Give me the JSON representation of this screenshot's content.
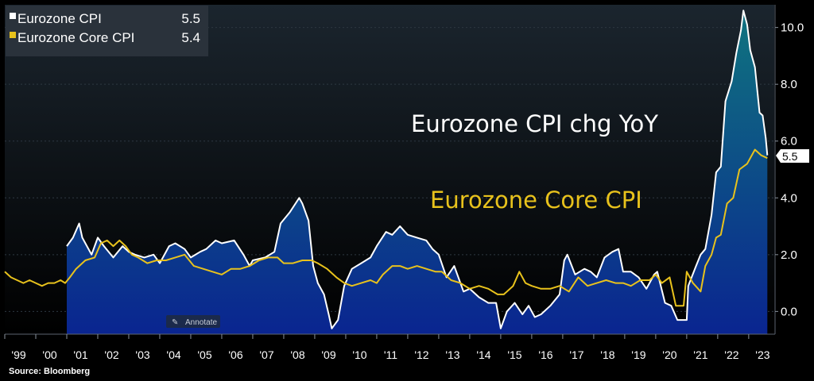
{
  "source": "Source: Bloomberg",
  "annotate_label": "Annotate",
  "colors": {
    "cpi": "#ffffff",
    "core": "#e8c21c",
    "area_top": "#0f6f80",
    "area_bottom": "#0a2590",
    "background_top": "#1b252e",
    "background_bottom": "#000000"
  },
  "legend": [
    {
      "name": "Eurozone CPI",
      "value": "5.5"
    },
    {
      "name": "Eurozone Core CPI",
      "value": "5.4"
    }
  ],
  "annotations": {
    "cpi_title": "Eurozone CPI chg YoY",
    "core_title": "Eurozone Core CPI",
    "last_value": "5.5"
  },
  "chart_data": {
    "type": "line",
    "title": "Eurozone CPI chg YoY",
    "ylim": [
      -0.8,
      10.8
    ],
    "yticks": [
      "0.0",
      "2.0",
      "4.0",
      "6.0",
      "8.0",
      "10.0"
    ],
    "y_axis_side": "right",
    "x_tick_labels": [
      "'99",
      "'00",
      "'01",
      "'02",
      "'03",
      "'04",
      "'05",
      "'06",
      "'07",
      "'08",
      "'09",
      "'10",
      "'11",
      "'12",
      "'13",
      "'14",
      "'15",
      "'16",
      "'17",
      "'18",
      "'19",
      "'20",
      "'21",
      "'22",
      "'23"
    ],
    "legend_placement": "top-left",
    "series": [
      {
        "name": "Eurozone CPI",
        "points": [
          [
            2001.0,
            2.3
          ],
          [
            2001.2,
            2.6
          ],
          [
            2001.4,
            3.1
          ],
          [
            2001.5,
            2.6
          ],
          [
            2001.8,
            2.0
          ],
          [
            2002.0,
            2.6
          ],
          [
            2002.2,
            2.3
          ],
          [
            2002.5,
            1.9
          ],
          [
            2002.8,
            2.3
          ],
          [
            2003.0,
            2.1
          ],
          [
            2003.2,
            2.0
          ],
          [
            2003.5,
            1.9
          ],
          [
            2003.8,
            2.0
          ],
          [
            2004.0,
            1.7
          ],
          [
            2004.3,
            2.3
          ],
          [
            2004.5,
            2.4
          ],
          [
            2004.8,
            2.2
          ],
          [
            2005.0,
            1.9
          ],
          [
            2005.3,
            2.1
          ],
          [
            2005.5,
            2.2
          ],
          [
            2005.8,
            2.5
          ],
          [
            2006.0,
            2.4
          ],
          [
            2006.4,
            2.5
          ],
          [
            2006.7,
            2.0
          ],
          [
            2006.9,
            1.6
          ],
          [
            2007.0,
            1.8
          ],
          [
            2007.4,
            1.9
          ],
          [
            2007.7,
            2.1
          ],
          [
            2007.9,
            3.1
          ],
          [
            2008.2,
            3.5
          ],
          [
            2008.5,
            4.0
          ],
          [
            2008.6,
            3.8
          ],
          [
            2008.8,
            3.2
          ],
          [
            2008.95,
            1.6
          ],
          [
            2009.1,
            1.0
          ],
          [
            2009.3,
            0.6
          ],
          [
            2009.45,
            -0.1
          ],
          [
            2009.55,
            -0.6
          ],
          [
            2009.75,
            -0.3
          ],
          [
            2009.95,
            0.9
          ],
          [
            2010.2,
            1.5
          ],
          [
            2010.5,
            1.7
          ],
          [
            2010.8,
            1.9
          ],
          [
            2011.0,
            2.3
          ],
          [
            2011.3,
            2.8
          ],
          [
            2011.5,
            2.7
          ],
          [
            2011.75,
            3.0
          ],
          [
            2012.0,
            2.7
          ],
          [
            2012.3,
            2.6
          ],
          [
            2012.6,
            2.5
          ],
          [
            2012.8,
            2.2
          ],
          [
            2013.0,
            2.0
          ],
          [
            2013.25,
            1.2
          ],
          [
            2013.5,
            1.6
          ],
          [
            2013.8,
            0.7
          ],
          [
            2014.0,
            0.8
          ],
          [
            2014.3,
            0.5
          ],
          [
            2014.6,
            0.3
          ],
          [
            2014.85,
            0.3
          ],
          [
            2015.0,
            -0.6
          ],
          [
            2015.2,
            0.0
          ],
          [
            2015.45,
            0.3
          ],
          [
            2015.7,
            -0.1
          ],
          [
            2015.9,
            0.2
          ],
          [
            2016.1,
            -0.2
          ],
          [
            2016.3,
            -0.1
          ],
          [
            2016.6,
            0.2
          ],
          [
            2016.9,
            0.6
          ],
          [
            2017.05,
            1.8
          ],
          [
            2017.15,
            2.0
          ],
          [
            2017.4,
            1.3
          ],
          [
            2017.7,
            1.5
          ],
          [
            2017.9,
            1.4
          ],
          [
            2018.1,
            1.2
          ],
          [
            2018.35,
            1.9
          ],
          [
            2018.6,
            2.1
          ],
          [
            2018.8,
            2.2
          ],
          [
            2018.95,
            1.4
          ],
          [
            2019.2,
            1.4
          ],
          [
            2019.45,
            1.2
          ],
          [
            2019.7,
            0.8
          ],
          [
            2019.95,
            1.3
          ],
          [
            2020.05,
            1.4
          ],
          [
            2020.3,
            0.3
          ],
          [
            2020.5,
            0.2
          ],
          [
            2020.7,
            -0.3
          ],
          [
            2020.9,
            -0.3
          ],
          [
            2021.0,
            -0.3
          ],
          [
            2021.05,
            0.9
          ],
          [
            2021.3,
            1.6
          ],
          [
            2021.45,
            2.0
          ],
          [
            2021.6,
            2.2
          ],
          [
            2021.8,
            3.4
          ],
          [
            2021.95,
            4.9
          ],
          [
            2022.1,
            5.1
          ],
          [
            2022.25,
            7.4
          ],
          [
            2022.45,
            8.1
          ],
          [
            2022.6,
            9.1
          ],
          [
            2022.75,
            9.9
          ],
          [
            2022.83,
            10.6
          ],
          [
            2022.95,
            10.1
          ],
          [
            2023.05,
            9.2
          ],
          [
            2023.2,
            8.6
          ],
          [
            2023.35,
            7.0
          ],
          [
            2023.45,
            6.9
          ],
          [
            2023.55,
            6.1
          ],
          [
            2023.6,
            5.5
          ]
        ]
      },
      {
        "name": "Eurozone Core CPI",
        "points": [
          [
            1999.0,
            1.4
          ],
          [
            1999.2,
            1.2
          ],
          [
            1999.4,
            1.1
          ],
          [
            1999.6,
            1.0
          ],
          [
            1999.8,
            1.1
          ],
          [
            2000.0,
            1.0
          ],
          [
            2000.2,
            0.9
          ],
          [
            2000.4,
            1.0
          ],
          [
            2000.6,
            1.0
          ],
          [
            2000.8,
            1.1
          ],
          [
            2000.95,
            1.0
          ],
          [
            2001.1,
            1.2
          ],
          [
            2001.3,
            1.5
          ],
          [
            2001.6,
            1.8
          ],
          [
            2001.9,
            1.9
          ],
          [
            2002.1,
            2.4
          ],
          [
            2002.3,
            2.5
          ],
          [
            2002.5,
            2.3
          ],
          [
            2002.7,
            2.5
          ],
          [
            2002.9,
            2.3
          ],
          [
            2003.1,
            2.0
          ],
          [
            2003.3,
            1.9
          ],
          [
            2003.6,
            1.7
          ],
          [
            2003.9,
            1.8
          ],
          [
            2004.2,
            1.8
          ],
          [
            2004.5,
            1.9
          ],
          [
            2004.8,
            2.0
          ],
          [
            2005.1,
            1.6
          ],
          [
            2005.4,
            1.5
          ],
          [
            2005.7,
            1.4
          ],
          [
            2006.0,
            1.3
          ],
          [
            2006.3,
            1.5
          ],
          [
            2006.6,
            1.5
          ],
          [
            2006.9,
            1.6
          ],
          [
            2007.2,
            1.8
          ],
          [
            2007.5,
            1.9
          ],
          [
            2007.8,
            1.9
          ],
          [
            2008.0,
            1.7
          ],
          [
            2008.3,
            1.7
          ],
          [
            2008.6,
            1.8
          ],
          [
            2008.9,
            1.8
          ],
          [
            2009.1,
            1.7
          ],
          [
            2009.4,
            1.5
          ],
          [
            2009.7,
            1.2
          ],
          [
            2009.95,
            1.0
          ],
          [
            2010.2,
            0.9
          ],
          [
            2010.5,
            1.0
          ],
          [
            2010.8,
            1.1
          ],
          [
            2011.0,
            1.0
          ],
          [
            2011.2,
            1.3
          ],
          [
            2011.5,
            1.6
          ],
          [
            2011.75,
            1.6
          ],
          [
            2012.0,
            1.5
          ],
          [
            2012.3,
            1.6
          ],
          [
            2012.6,
            1.5
          ],
          [
            2012.9,
            1.4
          ],
          [
            2013.1,
            1.4
          ],
          [
            2013.4,
            1.1
          ],
          [
            2013.7,
            1.0
          ],
          [
            2014.0,
            0.8
          ],
          [
            2014.3,
            0.9
          ],
          [
            2014.6,
            0.8
          ],
          [
            2014.9,
            0.6
          ],
          [
            2015.1,
            0.6
          ],
          [
            2015.4,
            0.9
          ],
          [
            2015.6,
            1.4
          ],
          [
            2015.8,
            1.0
          ],
          [
            2016.0,
            0.9
          ],
          [
            2016.3,
            0.8
          ],
          [
            2016.6,
            0.8
          ],
          [
            2016.9,
            0.9
          ],
          [
            2017.2,
            0.7
          ],
          [
            2017.5,
            1.2
          ],
          [
            2017.8,
            0.9
          ],
          [
            2018.1,
            1.0
          ],
          [
            2018.4,
            1.1
          ],
          [
            2018.7,
            1.0
          ],
          [
            2018.95,
            1.0
          ],
          [
            2019.2,
            0.9
          ],
          [
            2019.5,
            1.1
          ],
          [
            2019.8,
            1.1
          ],
          [
            2020.0,
            1.3
          ],
          [
            2020.2,
            1.0
          ],
          [
            2020.45,
            1.2
          ],
          [
            2020.65,
            0.2
          ],
          [
            2020.9,
            0.2
          ],
          [
            2021.0,
            1.4
          ],
          [
            2021.2,
            1.0
          ],
          [
            2021.45,
            0.7
          ],
          [
            2021.6,
            1.6
          ],
          [
            2021.8,
            2.0
          ],
          [
            2021.95,
            2.6
          ],
          [
            2022.1,
            2.7
          ],
          [
            2022.3,
            3.8
          ],
          [
            2022.5,
            4.0
          ],
          [
            2022.7,
            5.0
          ],
          [
            2022.95,
            5.2
          ],
          [
            2023.2,
            5.7
          ],
          [
            2023.4,
            5.5
          ],
          [
            2023.6,
            5.4
          ]
        ]
      }
    ]
  }
}
